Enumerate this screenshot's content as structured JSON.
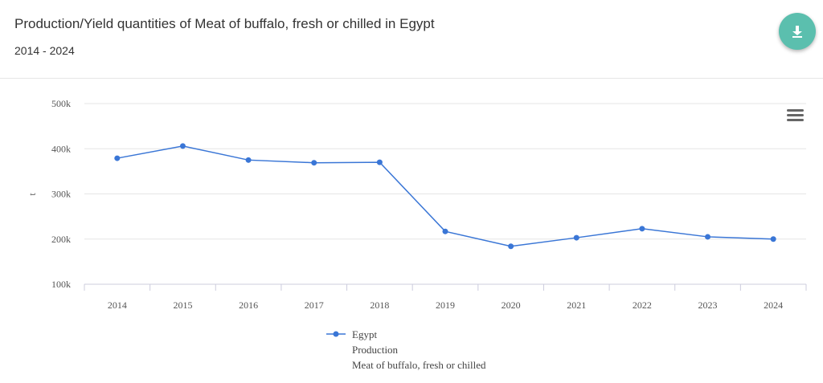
{
  "header": {
    "title": "Production/Yield quantities of Meat of buffalo, fresh or chilled in Egypt",
    "subtitle": "2014 - 2024",
    "download_icon": "download-icon",
    "menu_icon": "hamburger-menu-icon"
  },
  "chart_data": {
    "type": "line",
    "title": "Production/Yield quantities of Meat of buffalo, fresh or chilled in Egypt",
    "subtitle": "2014 - 2024",
    "xlabel": "",
    "ylabel": "t",
    "categories": [
      "2014",
      "2015",
      "2016",
      "2017",
      "2018",
      "2019",
      "2020",
      "2021",
      "2022",
      "2023",
      "2024"
    ],
    "ylim": [
      100000,
      500000
    ],
    "yticks": [
      100000,
      200000,
      300000,
      400000,
      500000
    ],
    "ytick_labels": [
      "100k",
      "200k",
      "300k",
      "400k",
      "500k"
    ],
    "grid": true,
    "legend_position": "bottom",
    "series": [
      {
        "name": "Egypt",
        "legend_lines": [
          "Egypt",
          "Production",
          "Meat of buffalo, fresh or chilled"
        ],
        "color": "#3a76d6",
        "values": [
          379000,
          406000,
          375000,
          369000,
          370000,
          217000,
          184000,
          203000,
          223000,
          205000,
          200000
        ]
      }
    ]
  }
}
